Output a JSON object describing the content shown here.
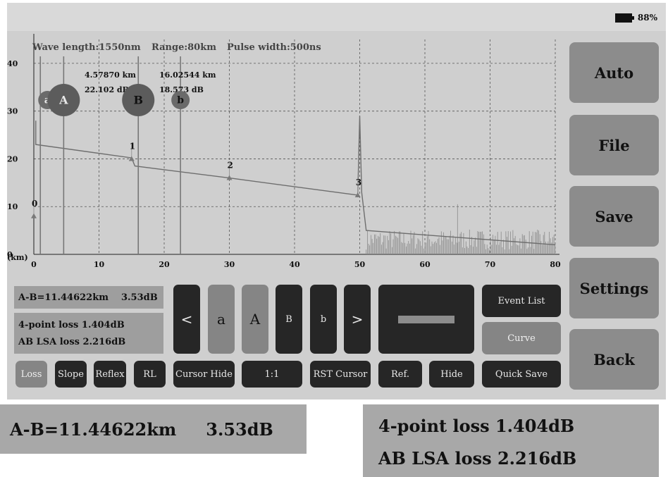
{
  "status_bar": {
    "battery_percent": "88%"
  },
  "trace": {
    "header": {
      "wavelength": "Wave length:1550nm",
      "range": "Range:80km",
      "pulse": "Pulse width:500ns"
    },
    "y_ticks": [
      "40",
      "30",
      "20",
      "10",
      "0"
    ],
    "x_ticks": [
      "0",
      "10",
      "20",
      "30",
      "40",
      "50",
      "60",
      "70",
      "80"
    ],
    "x_unit": "(km)",
    "cursor_a_readout": {
      "distance": "4.57870 km",
      "loss": "22.102 dB"
    },
    "cursor_b_readout": {
      "distance": "16.02544 km",
      "loss": "18.573 dB"
    },
    "cursors": {
      "a": "a",
      "A": "A",
      "B": "B",
      "b": "b"
    },
    "events": [
      "0",
      "1",
      "2",
      "3"
    ]
  },
  "chart_data": {
    "type": "line",
    "x_label": "(km)",
    "xlim": [
      0,
      80
    ],
    "ylim": [
      0,
      45
    ],
    "trace_points": [
      {
        "x": 0.3,
        "y": 23
      },
      {
        "x": 15,
        "y": 20.2
      },
      {
        "x": 15.5,
        "y": 18.5
      },
      {
        "x": 30,
        "y": 16
      },
      {
        "x": 49.7,
        "y": 12.4
      },
      {
        "x": 50,
        "y": 29
      },
      {
        "x": 50.3,
        "y": 13
      },
      {
        "x": 51,
        "y": 5
      },
      {
        "x": 80,
        "y": 2
      }
    ],
    "events": [
      {
        "label": "0",
        "x": 0,
        "y": 8
      },
      {
        "label": "1",
        "x": 15,
        "y": 20
      },
      {
        "label": "2",
        "x": 30,
        "y": 16
      },
      {
        "label": "3",
        "x": 49.7,
        "y": 12.4
      }
    ],
    "cursors": [
      {
        "label": "a",
        "x": 1
      },
      {
        "label": "A",
        "x": 4.5787
      },
      {
        "label": "B",
        "x": 16.02544
      },
      {
        "label": "b",
        "x": 22.5
      }
    ]
  },
  "summary": {
    "ab": {
      "distance": "A-B=11.44622km",
      "loss": "3.53dB"
    },
    "four_point": "4-point loss 1.404dB",
    "lsa": "AB LSA loss 2.216dB"
  },
  "cursor_controls": {
    "prev": "<",
    "a": "a",
    "A": "A",
    "B": "B",
    "b": "b",
    "next": ">"
  },
  "mode_buttons": {
    "loss": "Loss",
    "slope": "Slope",
    "reflex": "Reflex",
    "rl": "RL"
  },
  "bottom_buttons": {
    "cursor_hide": "Cursor Hide",
    "ratio": "1:1",
    "rst_cursor": "RST Cursor",
    "ref": "Ref.",
    "hide": "Hide"
  },
  "right_buttons": {
    "event_list": "Event List",
    "curve": "Curve",
    "quick_save": "Quick Save"
  },
  "side_menu": {
    "auto": "Auto",
    "file": "File",
    "save": "Save",
    "settings": "Settings",
    "back": "Back"
  }
}
